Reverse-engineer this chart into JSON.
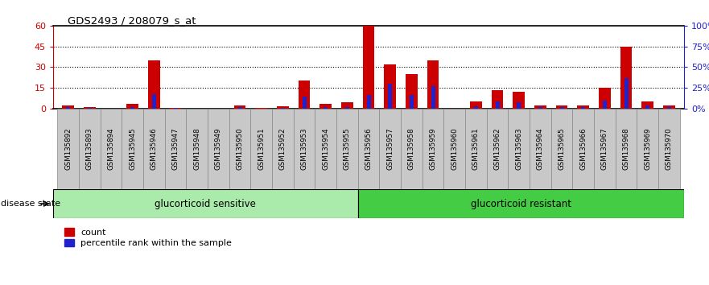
{
  "title": "GDS2493 / 208079_s_at",
  "samples": [
    "GSM135892",
    "GSM135893",
    "GSM135894",
    "GSM135945",
    "GSM135946",
    "GSM135947",
    "GSM135948",
    "GSM135949",
    "GSM135950",
    "GSM135951",
    "GSM135952",
    "GSM135953",
    "GSM135954",
    "GSM135955",
    "GSM135956",
    "GSM135957",
    "GSM135958",
    "GSM135959",
    "GSM135960",
    "GSM135961",
    "GSM135962",
    "GSM135963",
    "GSM135964",
    "GSM135965",
    "GSM135966",
    "GSM135967",
    "GSM135968",
    "GSM135969",
    "GSM135970"
  ],
  "count_values": [
    2.0,
    1.0,
    0.0,
    3.0,
    35.0,
    0.5,
    0.0,
    0.0,
    2.0,
    0.5,
    1.5,
    20.0,
    3.0,
    4.5,
    60.0,
    32.0,
    25.0,
    35.0,
    0.0,
    5.0,
    13.0,
    12.0,
    2.0,
    2.0,
    2.0,
    15.0,
    45.0,
    5.0,
    2.0
  ],
  "percentile_values": [
    1.0,
    0.5,
    0.0,
    1.5,
    17.0,
    0.3,
    0.0,
    0.0,
    1.2,
    0.0,
    0.5,
    14.0,
    1.5,
    1.5,
    16.0,
    30.0,
    16.0,
    27.0,
    0.0,
    2.5,
    8.0,
    7.0,
    1.0,
    1.0,
    1.0,
    9.0,
    37.0,
    3.0,
    1.0
  ],
  "sensitive_count": 14,
  "ylim_left": [
    0,
    60
  ],
  "ylim_right": [
    0,
    100
  ],
  "yticks_left": [
    0,
    15,
    30,
    45,
    60
  ],
  "yticks_right": [
    0,
    25,
    50,
    75,
    100
  ],
  "ytick_labels_left": [
    "0",
    "15",
    "30",
    "45",
    "60"
  ],
  "ytick_labels_right": [
    "0%",
    "25%",
    "50%",
    "75%",
    "100%"
  ],
  "bar_color_red": "#cc0000",
  "bar_color_blue": "#2222cc",
  "tick_bg_color": "#c8c8c8",
  "tick_border_color": "#888888",
  "group_sensitive_color": "#aaeaaa",
  "group_resistant_color": "#44cc44",
  "group_sensitive_label": "glucorticoid sensitive",
  "group_resistant_label": "glucorticoid resistant",
  "disease_state_label": "disease state",
  "legend_count": "count",
  "legend_percentile": "percentile rank within the sample"
}
